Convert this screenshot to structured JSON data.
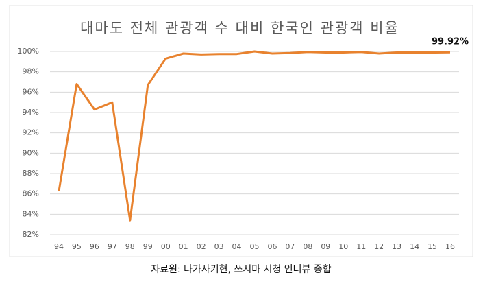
{
  "chart_data": {
    "type": "line",
    "title": "대마도 전체 관광객 수 대비 한국인 관광객 비율",
    "caption": "자료원: 나가사키현, 쓰시마 시청 인터뷰 종합",
    "categories": [
      "94",
      "95",
      "96",
      "97",
      "98",
      "99",
      "00",
      "01",
      "02",
      "03",
      "04",
      "05",
      "06",
      "07",
      "08",
      "09",
      "10",
      "11",
      "12",
      "13",
      "14",
      "15",
      "16"
    ],
    "series": [
      {
        "color": "#e8822e",
        "values": [
          86.3,
          96.8,
          94.3,
          95.0,
          83.4,
          96.7,
          99.3,
          99.8,
          99.7,
          99.75,
          99.75,
          100.0,
          99.8,
          99.85,
          99.95,
          99.9,
          99.9,
          99.95,
          99.8,
          99.9,
          99.9,
          99.9,
          99.92
        ],
        "value_labels": [
          null,
          null,
          null,
          null,
          null,
          null,
          null,
          null,
          null,
          null,
          null,
          null,
          null,
          null,
          null,
          null,
          null,
          null,
          null,
          null,
          null,
          null,
          "99.92%"
        ]
      }
    ],
    "ylim": [
      82,
      100
    ],
    "yticks": [
      {
        "value": 82,
        "label": "82%"
      },
      {
        "value": 84,
        "label": "84%"
      },
      {
        "value": 86,
        "label": "86%"
      },
      {
        "value": 88,
        "label": "88%"
      },
      {
        "value": 90,
        "label": "90%"
      },
      {
        "value": 92,
        "label": "92%"
      },
      {
        "value": 94,
        "label": "94%"
      },
      {
        "value": 96,
        "label": "96%"
      },
      {
        "value": 98,
        "label": "98%"
      },
      {
        "value": 100,
        "label": "100%"
      }
    ],
    "grid": true
  }
}
